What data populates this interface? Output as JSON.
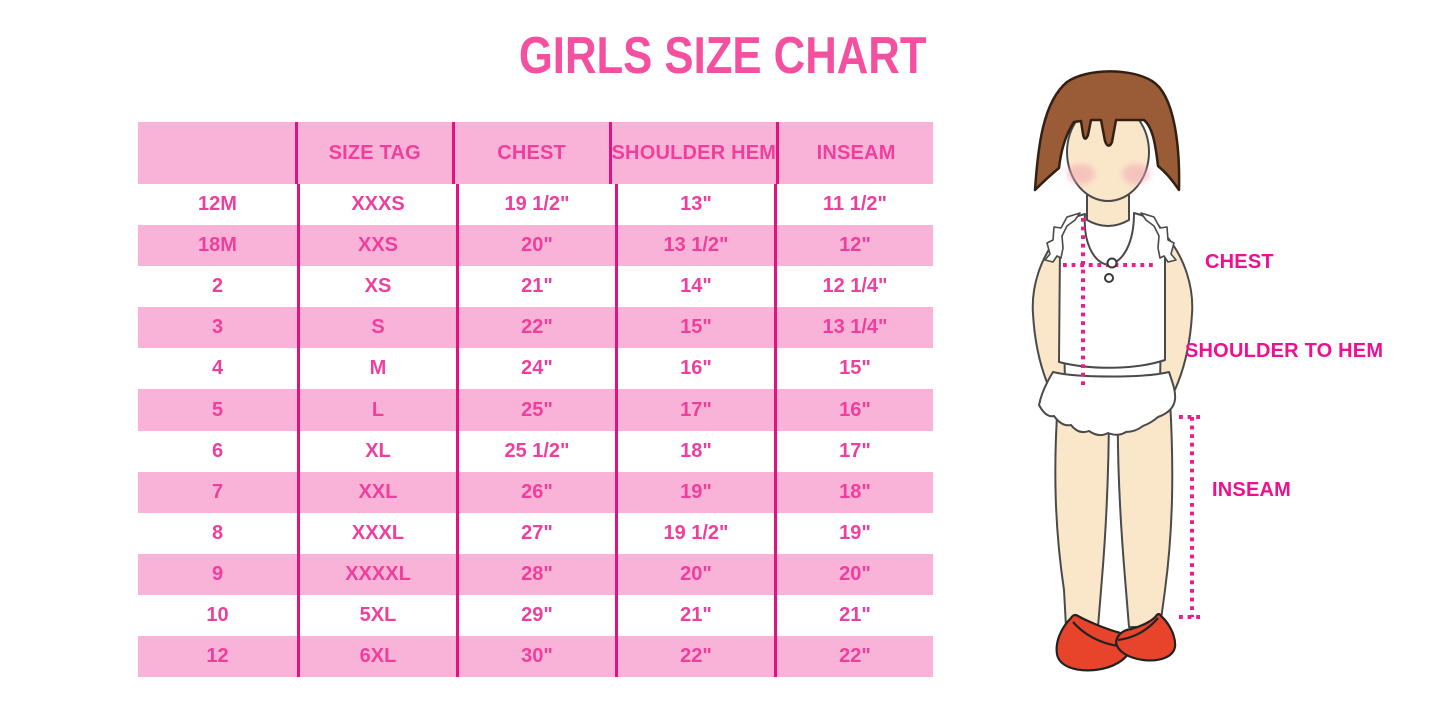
{
  "title": "GIRLS SIZE CHART",
  "chart_data": {
    "type": "table",
    "title": "GIRLS SIZE CHART",
    "columns": [
      "",
      "SIZE TAG",
      "CHEST",
      "SHOULDER HEM",
      "INSEAM"
    ],
    "rows": [
      [
        "12M",
        "XXXS",
        "19 1/2\"",
        "13\"",
        "11 1/2\""
      ],
      [
        "18M",
        "XXS",
        "20\"",
        "13 1/2\"",
        "12\""
      ],
      [
        "2",
        "XS",
        "21\"",
        "14\"",
        "12 1/4\""
      ],
      [
        "3",
        "S",
        "22\"",
        "15\"",
        "13 1/4\""
      ],
      [
        "4",
        "M",
        "24\"",
        "16\"",
        "15\""
      ],
      [
        "5",
        "L",
        "25\"",
        "17\"",
        "16\""
      ],
      [
        "6",
        "XL",
        "25 1/2\"",
        "18\"",
        "17\""
      ],
      [
        "7",
        "XXL",
        "26\"",
        "19\"",
        "18\""
      ],
      [
        "8",
        "XXXL",
        "27\"",
        "19 1/2\"",
        "19\""
      ],
      [
        "9",
        "XXXXL",
        "28\"",
        "20\"",
        "20\""
      ],
      [
        "10",
        "5XL",
        "29\"",
        "21\"",
        "21\""
      ],
      [
        "12",
        "6XL",
        "30\"",
        "22\"",
        "22\""
      ]
    ],
    "layout": {
      "striped": true,
      "stripe_color": "#FAB3D8",
      "grid": "vertical-dividers-only"
    }
  },
  "figure_labels": {
    "chest": "CHEST",
    "shoulder_to_hem": "SHOULDER TO HEM",
    "inseam": "INSEAM"
  },
  "colors": {
    "title": "#F4509F",
    "band": "#FAB3D8",
    "celltext": "#EF3F9C",
    "divider": "#E2137E",
    "label": "#EE1090",
    "dots": "#EC1C8C",
    "hair": "#9A5C36",
    "skin": "#FAE7CA",
    "shoes": "#E8432B"
  }
}
